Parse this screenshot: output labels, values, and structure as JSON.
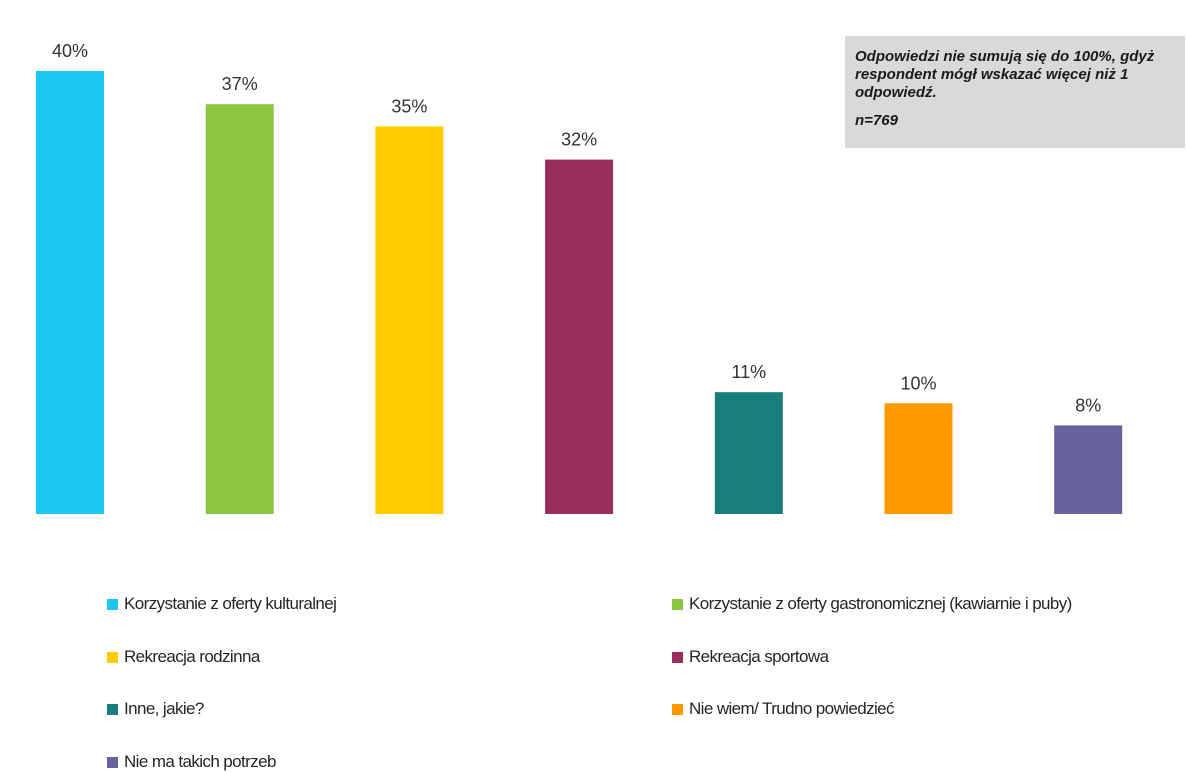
{
  "chart_data": {
    "type": "bar",
    "categories": [
      "Korzystanie z oferty kulturalnej",
      "Korzystanie z oferty gastronomicznej (kawiarnie i puby)",
      "Rekreacja rodzinna",
      "Rekreacja sportowa",
      "Inne, jakie?",
      "Nie wiem/ Trudno powiedzieć",
      "Nie ma takich potrzeb"
    ],
    "values": [
      40,
      37,
      35,
      32,
      11,
      10,
      8
    ],
    "value_labels": [
      "40%",
      "37%",
      "35%",
      "32%",
      "11%",
      "10%",
      "8%"
    ],
    "colors": [
      "#1cc7f2",
      "#8cc63f",
      "#ffcc00",
      "#9b2d5e",
      "#1a7d7d",
      "#ff9900",
      "#66629c"
    ],
    "ylim": [
      0,
      40
    ],
    "grid": false,
    "legend_position": "bottom",
    "title": "",
    "xlabel": "",
    "ylabel": ""
  },
  "note": {
    "text": "Odpowiedzi nie sumują się do 100%, gdyż respondent mógł wskazać więcej niż 1 odpowiedź.",
    "n": "n=769"
  },
  "legend": [
    {
      "label": "Korzystanie z oferty kulturalnej",
      "color": "#1cc7f2"
    },
    {
      "label": "Korzystanie z oferty gastronomicznej (kawiarnie i puby)",
      "color": "#8cc63f"
    },
    {
      "label": "Rekreacja rodzinna",
      "color": "#ffcc00"
    },
    {
      "label": "Rekreacja sportowa",
      "color": "#9b2d5e"
    },
    {
      "label": "Inne, jakie?",
      "color": "#1a7d7d"
    },
    {
      "label": "Nie wiem/ Trudno powiedzieć",
      "color": "#ff9900"
    },
    {
      "label": "Nie ma takich potrzeb",
      "color": "#66629c"
    }
  ]
}
